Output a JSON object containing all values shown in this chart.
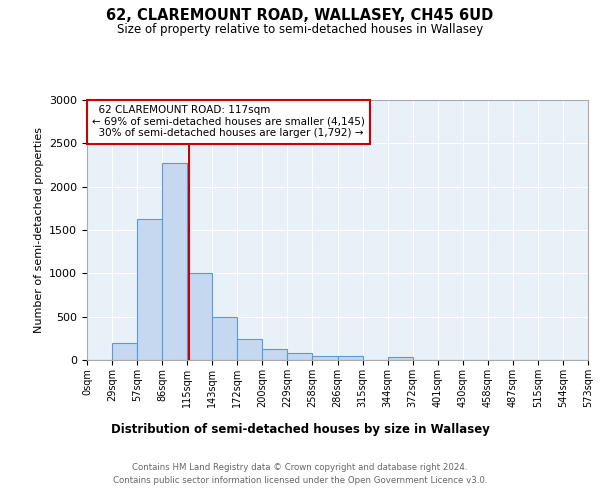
{
  "title": "62, CLAREMOUNT ROAD, WALLASEY, CH45 6UD",
  "subtitle": "Size of property relative to semi-detached houses in Wallasey",
  "xlabel": "Distribution of semi-detached houses by size in Wallasey",
  "ylabel": "Number of semi-detached properties",
  "bin_labels": [
    "0sqm",
    "29sqm",
    "57sqm",
    "86sqm",
    "115sqm",
    "143sqm",
    "172sqm",
    "200sqm",
    "229sqm",
    "258sqm",
    "286sqm",
    "315sqm",
    "344sqm",
    "372sqm",
    "401sqm",
    "430sqm",
    "458sqm",
    "487sqm",
    "515sqm",
    "544sqm",
    "573sqm"
  ],
  "bar_heights": [
    0,
    200,
    1630,
    2270,
    1000,
    500,
    240,
    130,
    80,
    50,
    50,
    0,
    40,
    0,
    0,
    0,
    0,
    0,
    0,
    0
  ],
  "bar_color": "#c5d8f0",
  "bar_edge_color": "#5b9bd5",
  "property_value": 117,
  "property_label": "62 CLAREMOUNT ROAD: 117sqm",
  "pct_smaller": 69,
  "n_smaller": 4145,
  "pct_larger": 30,
  "n_larger": 1792,
  "vline_color": "#cc0000",
  "annotation_box_edge": "#cc0000",
  "ylim": [
    0,
    3000
  ],
  "yticks": [
    0,
    500,
    1000,
    1500,
    2000,
    2500,
    3000
  ],
  "footer_line1": "Contains HM Land Registry data © Crown copyright and database right 2024.",
  "footer_line2": "Contains public sector information licensed under the Open Government Licence v3.0.",
  "plot_bg_color": "#e8f0f8"
}
